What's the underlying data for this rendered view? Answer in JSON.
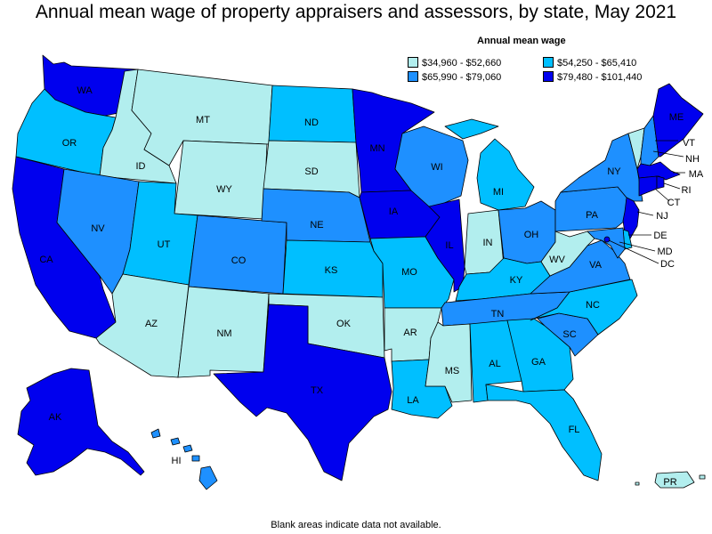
{
  "title": "Annual mean wage of property appraisers and assessors, by state, May 2021",
  "legend": {
    "title": "Annual mean wage",
    "items": [
      {
        "label": "$34,960 - $52,660",
        "color": "#b2eeee"
      },
      {
        "label": "$54,250 - $65,410",
        "color": "#00bfff"
      },
      {
        "label": "$65,990 - $79,060",
        "color": "#1e90ff"
      },
      {
        "label": "$79,480 - $101,440",
        "color": "#0000ee"
      }
    ]
  },
  "footnote": "Blank areas indicate data not available.",
  "states": [
    {
      "abbr": "WA",
      "bin": 3
    },
    {
      "abbr": "OR",
      "bin": 1
    },
    {
      "abbr": "CA",
      "bin": 3
    },
    {
      "abbr": "ID",
      "bin": 0
    },
    {
      "abbr": "NV",
      "bin": 2
    },
    {
      "abbr": "MT",
      "bin": 0
    },
    {
      "abbr": "WY",
      "bin": 0
    },
    {
      "abbr": "UT",
      "bin": 1
    },
    {
      "abbr": "AZ",
      "bin": 0
    },
    {
      "abbr": "CO",
      "bin": 2
    },
    {
      "abbr": "NM",
      "bin": 0
    },
    {
      "abbr": "ND",
      "bin": 1
    },
    {
      "abbr": "SD",
      "bin": 0
    },
    {
      "abbr": "NE",
      "bin": 2
    },
    {
      "abbr": "KS",
      "bin": 1
    },
    {
      "abbr": "OK",
      "bin": 0
    },
    {
      "abbr": "TX",
      "bin": 3
    },
    {
      "abbr": "MN",
      "bin": 3
    },
    {
      "abbr": "IA",
      "bin": 3
    },
    {
      "abbr": "MO",
      "bin": 1
    },
    {
      "abbr": "AR",
      "bin": 0
    },
    {
      "abbr": "LA",
      "bin": 1
    },
    {
      "abbr": "WI",
      "bin": 2
    },
    {
      "abbr": "IL",
      "bin": 3
    },
    {
      "abbr": "MI",
      "bin": 1
    },
    {
      "abbr": "IN",
      "bin": 0
    },
    {
      "abbr": "OH",
      "bin": 2
    },
    {
      "abbr": "KY",
      "bin": 1
    },
    {
      "abbr": "TN",
      "bin": 2
    },
    {
      "abbr": "MS",
      "bin": 0
    },
    {
      "abbr": "AL",
      "bin": 1
    },
    {
      "abbr": "GA",
      "bin": 1
    },
    {
      "abbr": "FL",
      "bin": 1
    },
    {
      "abbr": "SC",
      "bin": 2
    },
    {
      "abbr": "NC",
      "bin": 1
    },
    {
      "abbr": "VA",
      "bin": 2
    },
    {
      "abbr": "WV",
      "bin": 0
    },
    {
      "abbr": "PA",
      "bin": 2
    },
    {
      "abbr": "NY",
      "bin": 2
    },
    {
      "abbr": "VT",
      "bin": 0
    },
    {
      "abbr": "NH",
      "bin": 2
    },
    {
      "abbr": "ME",
      "bin": 3
    },
    {
      "abbr": "MA",
      "bin": 3
    },
    {
      "abbr": "RI",
      "bin": 3
    },
    {
      "abbr": "CT",
      "bin": 3
    },
    {
      "abbr": "NJ",
      "bin": 3
    },
    {
      "abbr": "DE",
      "bin": 1
    },
    {
      "abbr": "MD",
      "bin": 2
    },
    {
      "abbr": "DC",
      "bin": 3
    },
    {
      "abbr": "AK",
      "bin": 3
    },
    {
      "abbr": "HI",
      "bin": 2
    },
    {
      "abbr": "PR",
      "bin": 0
    }
  ]
}
